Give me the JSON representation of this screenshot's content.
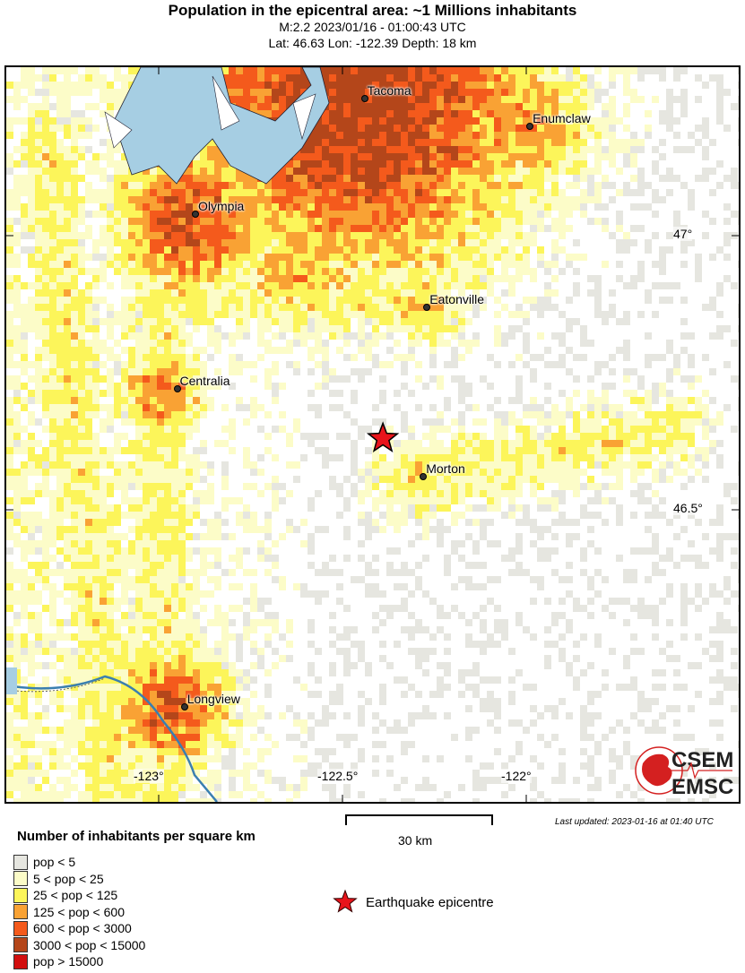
{
  "header": {
    "title": "Population in the epicentral area: ~1 Millions inhabitants",
    "line2": "M:2.2 2023/01/16 - 01:00:43 UTC",
    "line3": "Lat: 46.63 Lon: -122.39 Depth: 18 km"
  },
  "map": {
    "lon_ticks": [
      "-123°",
      "-122.5°",
      "-122°"
    ],
    "lat_ticks": [
      "47°",
      "46.5°"
    ],
    "cities": [
      {
        "name": "Tacoma",
        "lat": 47.25,
        "lon": -122.44
      },
      {
        "name": "Enumclaw",
        "lat": 47.2,
        "lon": -121.99
      },
      {
        "name": "Olympia",
        "lat": 47.04,
        "lon": -122.9
      },
      {
        "name": "Eatonville",
        "lat": 46.87,
        "lon": -122.27
      },
      {
        "name": "Centralia",
        "lat": 46.72,
        "lon": -122.95
      },
      {
        "name": "Morton",
        "lat": 46.56,
        "lon": -122.28
      },
      {
        "name": "Longview",
        "lat": 46.14,
        "lon": -122.93
      }
    ],
    "epicenter": {
      "lat": 46.63,
      "lon": -122.39
    },
    "colors": {
      "water": "#a6cee3",
      "epicenter": "#e8141b"
    }
  },
  "scale": {
    "label": "30 km"
  },
  "updated": "Last updated: 2023-01-16 at 01:40 UTC",
  "legend": {
    "title": "Number of inhabitants per square km",
    "items": [
      {
        "label": "pop < 5",
        "color": "#e6e6e0"
      },
      {
        "label": "5 < pop < 25",
        "color": "#fcfcc8"
      },
      {
        "label": "25 < pop < 125",
        "color": "#fcf55a"
      },
      {
        "label": "125 < pop < 600",
        "color": "#f9a234"
      },
      {
        "label": "600 < pop < 3000",
        "color": "#f45a1c"
      },
      {
        "label": "3000 < pop < 15000",
        "color": "#b4461a"
      },
      {
        "label": "pop > 15000",
        "color": "#d20f0f"
      }
    ],
    "epicenter_label": "Earthquake epicentre"
  },
  "logo": {
    "top": "CSEM",
    "bottom": "EMSC"
  }
}
